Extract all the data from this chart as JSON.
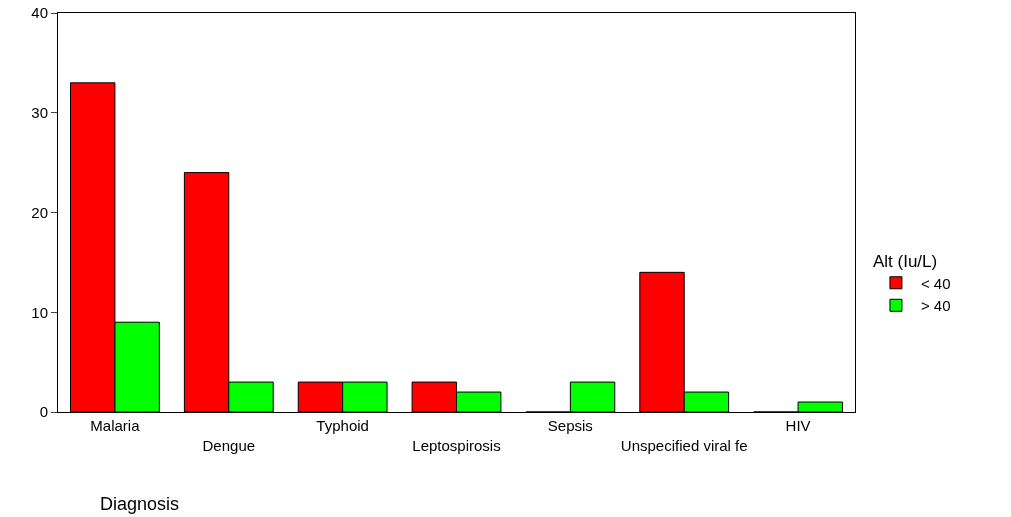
{
  "chart_data": {
    "type": "bar",
    "xlabel": "Diagnosis",
    "legend_title": "Alt (Iu/L)",
    "categories": [
      "Malaria",
      "Dengue",
      "Typhoid",
      "Leptospirosis",
      "Sepsis",
      "Unspecified viral fe",
      "HIV"
    ],
    "series": [
      {
        "name": "< 40",
        "color": "#ff0000",
        "values": [
          33,
          24,
          3,
          3,
          0,
          14,
          0
        ]
      },
      {
        "name": "> 40",
        "color": "#00ff00",
        "values": [
          9,
          3,
          3,
          2,
          3,
          2,
          1
        ]
      }
    ],
    "ylim": [
      0,
      40
    ],
    "yticks": [
      0,
      10,
      20,
      30,
      40
    ],
    "grid": false,
    "legend": "right"
  }
}
